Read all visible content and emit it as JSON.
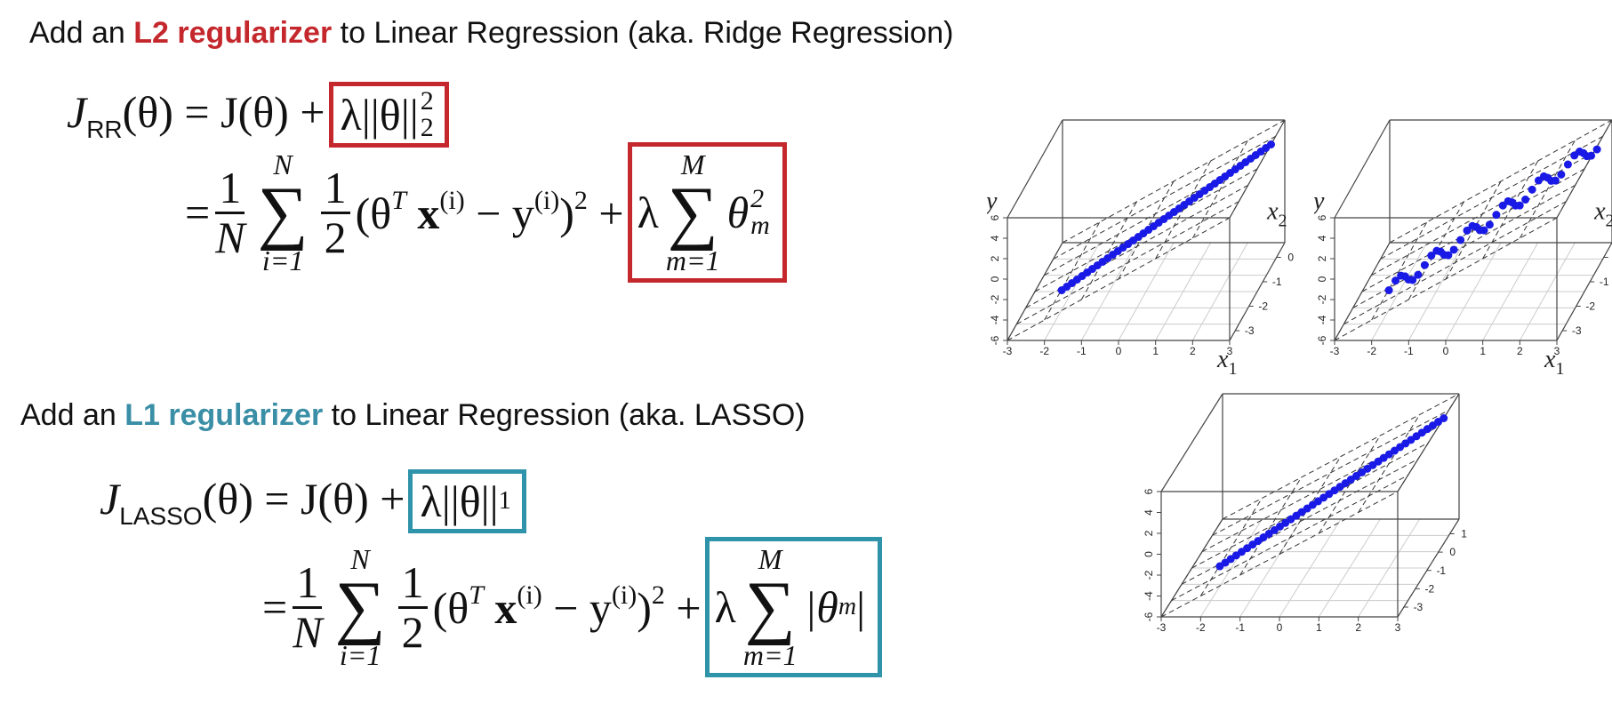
{
  "ridge": {
    "heading": {
      "lead": "Add an",
      "term": "L2 regularizer",
      "tail": "to Linear Regression (aka. Ridge Regression)"
    },
    "objective": {
      "symbol": "J",
      "subscript": "RR",
      "rhs": "(θ) = J(θ) +",
      "penalty": "λ||θ||",
      "penalty_subscript": "2",
      "penalty_superscript": "2"
    },
    "expansion": {
      "equals": "=",
      "frac_numerator": "1",
      "frac_denominator": "N",
      "sum_upper": "N",
      "sum_sign": "∑",
      "sum_lower": "i=1",
      "half_numerator": "1",
      "half_denominator": "2",
      "open": "(θ",
      "theta_sup": "T",
      "x": " x",
      "x_sup": "(i)",
      "minus": " − y",
      "y_sup": "(i)",
      "close": ")",
      "square": "2",
      "plus": " +",
      "lambda": "λ",
      "penalty_sum_upper": "M",
      "penalty_sum_sign": "∑",
      "penalty_sum_lower": "m=1",
      "theta": "θ",
      "theta_subscript": "m",
      "theta_superscript": "2"
    }
  },
  "lasso": {
    "heading": {
      "lead": "Add an",
      "term": "L1 regularizer",
      "tail": "to Linear Regression (aka. LASSO)"
    },
    "objective": {
      "symbol": "J",
      "subscript": "LASSO",
      "rhs": "(θ) = J(θ) +",
      "penalty": "λ||θ||",
      "penalty_subscript": "1"
    },
    "expansion": {
      "equals": "=",
      "frac_numerator": "1",
      "frac_denominator": "N",
      "sum_upper": "N",
      "sum_sign": "∑",
      "sum_lower": "i=1",
      "half_numerator": "1",
      "half_denominator": "2",
      "open": "(θ",
      "theta_sup": "T",
      "x": " x",
      "x_sup": "(i)",
      "minus": " − y",
      "y_sup": "(i)",
      "close": ")",
      "square": "2",
      "plus": " +",
      "lambda": "λ",
      "penalty_sum_upper": "M",
      "penalty_sum_sign": "∑",
      "penalty_sum_lower": "m=1",
      "abs_open": "|θ",
      "theta_subscript": "m",
      "abs_close": "|"
    }
  },
  "plots": [
    {
      "y_label": "y",
      "x1_label": "x",
      "x1_subscript": "1",
      "x2_label": "x",
      "x2_subscript": "2",
      "x_ticks": [
        -3,
        -2,
        -1,
        0,
        1,
        2,
        3
      ],
      "y_ticks": [
        -6,
        -4,
        -2,
        0,
        2,
        4,
        6
      ],
      "depth_ticks": [
        0,
        -1,
        -2,
        -3
      ]
    },
    {
      "y_label": "y",
      "x1_label": "x",
      "x1_subscript": "1",
      "x2_label": "x",
      "x2_subscript": "2",
      "x_ticks": [
        -3,
        -2,
        -1,
        0,
        1,
        2,
        3
      ],
      "y_ticks": [
        -6,
        -4,
        -2,
        0,
        2,
        4,
        6
      ],
      "depth_ticks": [
        0,
        -1,
        -2,
        -3
      ]
    },
    {
      "x_ticks": [
        -3,
        -2,
        -1,
        0,
        1,
        2,
        3
      ],
      "y_ticks": [
        -6,
        -4,
        -2,
        0,
        2,
        4,
        6
      ],
      "depth_ticks": [
        1,
        0,
        -1,
        -2,
        -3
      ]
    }
  ]
}
